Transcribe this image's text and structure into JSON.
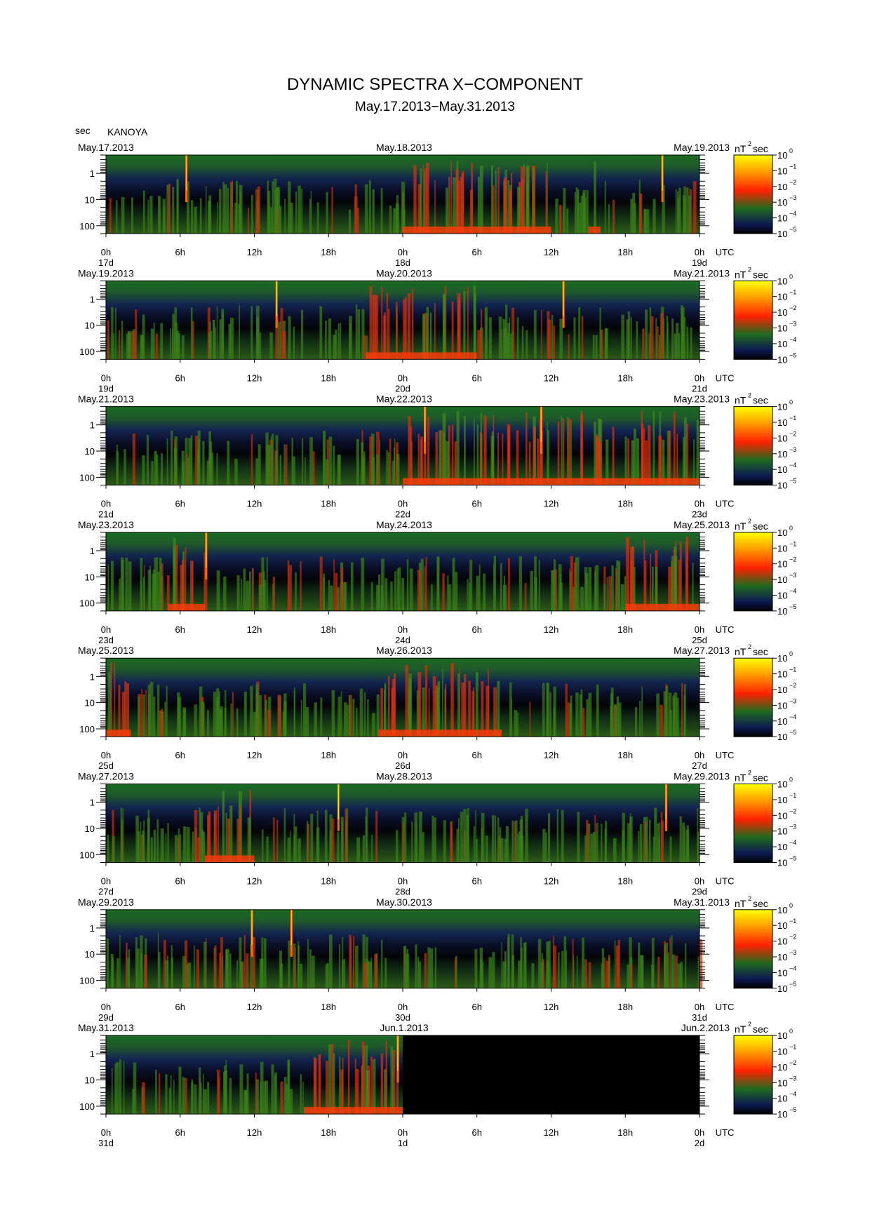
{
  "chart_data": {
    "type": "heatmap",
    "title": "DYNAMIC SPECTRA X−COMPONENT",
    "subtitle": "May.17.2013−May.31.2013",
    "station": "KANOYA",
    "y_unit_label": "sec",
    "y_ticks": [
      "1",
      "10",
      "100"
    ],
    "y_range_sec": [
      0.2,
      200
    ],
    "x_ticks": [
      "0h",
      "6h",
      "12h",
      "18h",
      "0h",
      "6h",
      "12h",
      "18h",
      "0h"
    ],
    "x_unit": "UTC",
    "colorbar": {
      "unit": "nT",
      "unit_sup": "2",
      "unit_suffix": "sec",
      "tick_base": "10",
      "exponents": [
        "0",
        "−1",
        "−2",
        "−3",
        "−4",
        "−5"
      ],
      "stops": [
        "#ffff00",
        "#ff9900",
        "#ff2200",
        "#1f6a1f",
        "#0d1a52",
        "#000000"
      ]
    },
    "panels": [
      {
        "date_left": "May.17.2013",
        "date_mid": "May.18.2013",
        "date_right": "May.19.2013",
        "day_left": "17d",
        "day_mid": "18d",
        "day_right": "19d",
        "data_fraction": 1.0,
        "spikes_hours": [
          6.5,
          45.0
        ],
        "activity_hours": [
          [
            24,
            36
          ],
          [
            39,
            40
          ]
        ]
      },
      {
        "date_left": "May.19.2013",
        "date_mid": "May.20.2013",
        "date_right": "May.21.2013",
        "day_left": "19d",
        "day_mid": "20d",
        "day_right": "21d",
        "data_fraction": 1.0,
        "spikes_hours": [
          13.8,
          37.0
        ],
        "activity_hours": [
          [
            21,
            30
          ]
        ]
      },
      {
        "date_left": "May.21.2013",
        "date_mid": "May.22.2013",
        "date_right": "May.23.2013",
        "day_left": "21d",
        "day_mid": "22d",
        "day_right": "23d",
        "data_fraction": 1.0,
        "spikes_hours": [
          25.8,
          35.2
        ],
        "activity_hours": [
          [
            24,
            48
          ]
        ]
      },
      {
        "date_left": "May.23.2013",
        "date_mid": "May.24.2013",
        "date_right": "May.25.2013",
        "day_left": "23d",
        "day_mid": "24d",
        "day_right": "25d",
        "data_fraction": 1.0,
        "spikes_hours": [
          8.1
        ],
        "activity_hours": [
          [
            5,
            8
          ],
          [
            42,
            48
          ]
        ]
      },
      {
        "date_left": "May.25.2013",
        "date_mid": "May.26.2013",
        "date_right": "May.27.2013",
        "day_left": "25d",
        "day_mid": "26d",
        "day_right": "27d",
        "data_fraction": 1.0,
        "spikes_hours": [],
        "activity_hours": [
          [
            0,
            2
          ],
          [
            22,
            32
          ]
        ]
      },
      {
        "date_left": "May.27.2013",
        "date_mid": "May.28.2013",
        "date_right": "May.29.2013",
        "day_left": "27d",
        "day_mid": "28d",
        "day_right": "29d",
        "data_fraction": 1.0,
        "spikes_hours": [
          18.8,
          45.3
        ],
        "activity_hours": [
          [
            8,
            12
          ]
        ]
      },
      {
        "date_left": "May.29.2013",
        "date_mid": "May.30.2013",
        "date_right": "May.31.2013",
        "day_left": "29d",
        "day_mid": "30d",
        "day_right": "31d",
        "data_fraction": 1.0,
        "spikes_hours": [
          11.8,
          15.0
        ],
        "activity_hours": []
      },
      {
        "date_left": "May.31.2013",
        "date_mid": "Jun.1.2013",
        "date_right": "Jun.2.2013",
        "day_left": "31d",
        "day_mid": "1d",
        "day_right": "2d",
        "data_fraction": 0.5,
        "spikes_hours": [
          23.6
        ],
        "activity_hours": [
          [
            16,
            24
          ]
        ]
      }
    ]
  }
}
